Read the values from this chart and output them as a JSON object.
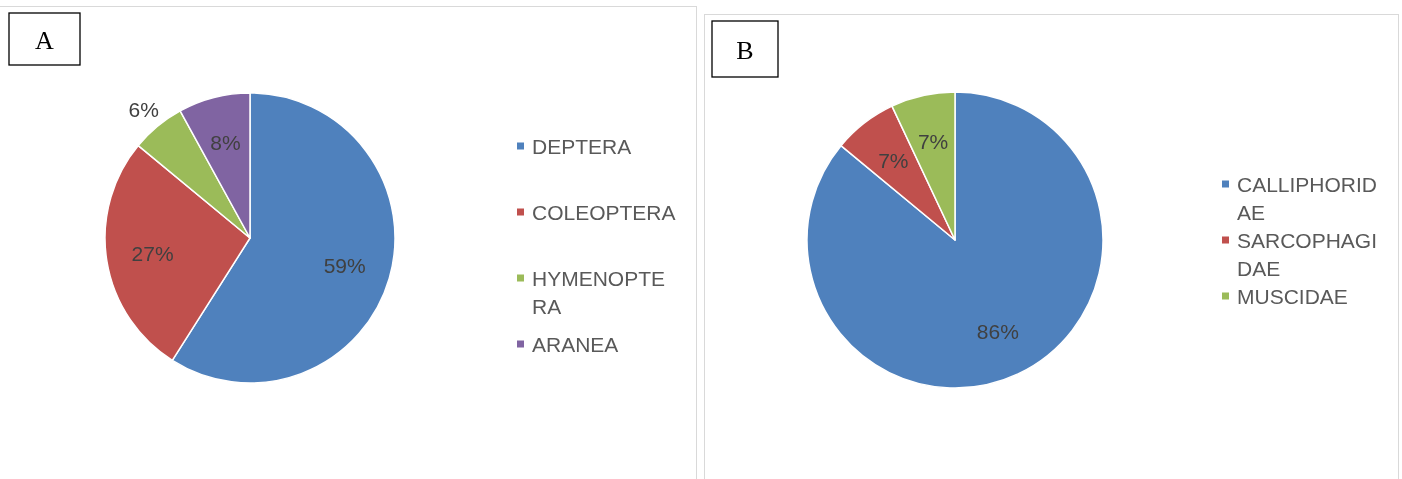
{
  "chart_data": [
    {
      "type": "pie",
      "title": "A",
      "categories": [
        "DEPTERA",
        "COLEOPTERA",
        "HYMENOPTERA",
        "ARANEA"
      ],
      "values": [
        59,
        27,
        6,
        8
      ],
      "colors": [
        "#4f81bd",
        "#c0504d",
        "#9bbb59",
        "#8064a2"
      ],
      "value_labels": [
        "59%",
        "27%",
        "6%",
        "8%"
      ],
      "legend": "right"
    },
    {
      "type": "pie",
      "title": "B",
      "categories": [
        "CALLIPHORIDAE",
        "SARCOPHAGIDAE",
        "MUSCIDAE"
      ],
      "values": [
        86,
        7,
        7
      ],
      "colors": [
        "#4f81bd",
        "#c0504d",
        "#9bbb59"
      ],
      "value_labels": [
        "86%",
        "7%",
        "7%"
      ],
      "legend": "right"
    }
  ]
}
